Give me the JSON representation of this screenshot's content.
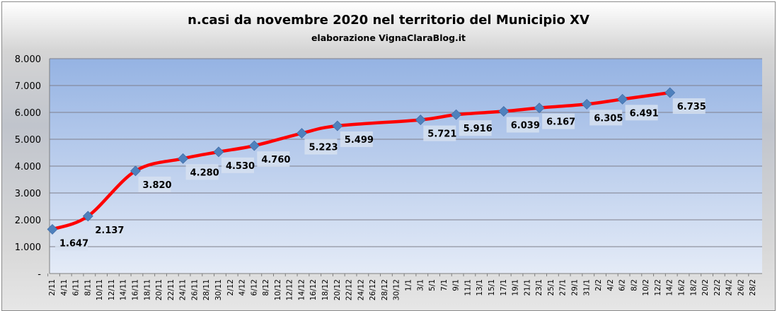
{
  "chart_data": {
    "type": "line",
    "title": "n.casi da novembre 2020 nel territorio del Municipio XV",
    "subtitle": "elaborazione VignaClaraBlog.it",
    "xlabel": "",
    "ylabel": "",
    "ylim": [
      0,
      8000
    ],
    "yticks": [
      "-",
      "1.000",
      "2.000",
      "3.000",
      "4.000",
      "5.000",
      "6.000",
      "7.000",
      "8.000"
    ],
    "grid": true,
    "categories": [
      "2/11",
      "4/11",
      "6/11",
      "8/11",
      "10/11",
      "12/11",
      "14/11",
      "16/11",
      "18/11",
      "20/11",
      "22/11",
      "24/11",
      "26/11",
      "28/11",
      "30/11",
      "2/12",
      "4/12",
      "6/12",
      "8/12",
      "10/12",
      "12/12",
      "14/12",
      "16/12",
      "18/12",
      "20/12",
      "22/12",
      "24/12",
      "26/12",
      "28/12",
      "30/12",
      "1/1",
      "3/1",
      "5/1",
      "7/1",
      "9/1",
      "11/1",
      "13/1",
      "15/1",
      "17/1",
      "19/1",
      "21/1",
      "23/1",
      "25/1",
      "27/1",
      "29/1",
      "31/1",
      "2/2",
      "4/2",
      "6/2",
      "8/2",
      "10/2",
      "12/2",
      "14/2",
      "16/2",
      "18/2",
      "20/2",
      "22/2",
      "24/2",
      "26/2",
      "28/2"
    ],
    "series": [
      {
        "name": "n.casi",
        "color": "#ff0000",
        "marker_color": "#4f81bd",
        "points": [
          {
            "x": "2/11",
            "y": 1647,
            "label": "1.647"
          },
          {
            "x": "8/11",
            "y": 2137,
            "label": "2.137"
          },
          {
            "x": "16/11",
            "y": 3820,
            "label": "3.820"
          },
          {
            "x": "24/11",
            "y": 4280,
            "label": "4.280"
          },
          {
            "x": "30/11",
            "y": 4530,
            "label": "4.530"
          },
          {
            "x": "6/12",
            "y": 4760,
            "label": "4.760"
          },
          {
            "x": "14/12",
            "y": 5223,
            "label": "5.223"
          },
          {
            "x": "20/12",
            "y": 5499,
            "label": "5.499"
          },
          {
            "x": "3/1",
            "y": 5721,
            "label": "5.721"
          },
          {
            "x": "9/1",
            "y": 5916,
            "label": "5.916"
          },
          {
            "x": "17/1",
            "y": 6039,
            "label": "6.039"
          },
          {
            "x": "23/1",
            "y": 6167,
            "label": "6.167"
          },
          {
            "x": "31/1",
            "y": 6305,
            "label": "6.305"
          },
          {
            "x": "6/2",
            "y": 6491,
            "label": "6.491"
          },
          {
            "x": "14/2",
            "y": 6735,
            "label": "6.735"
          }
        ]
      }
    ]
  }
}
